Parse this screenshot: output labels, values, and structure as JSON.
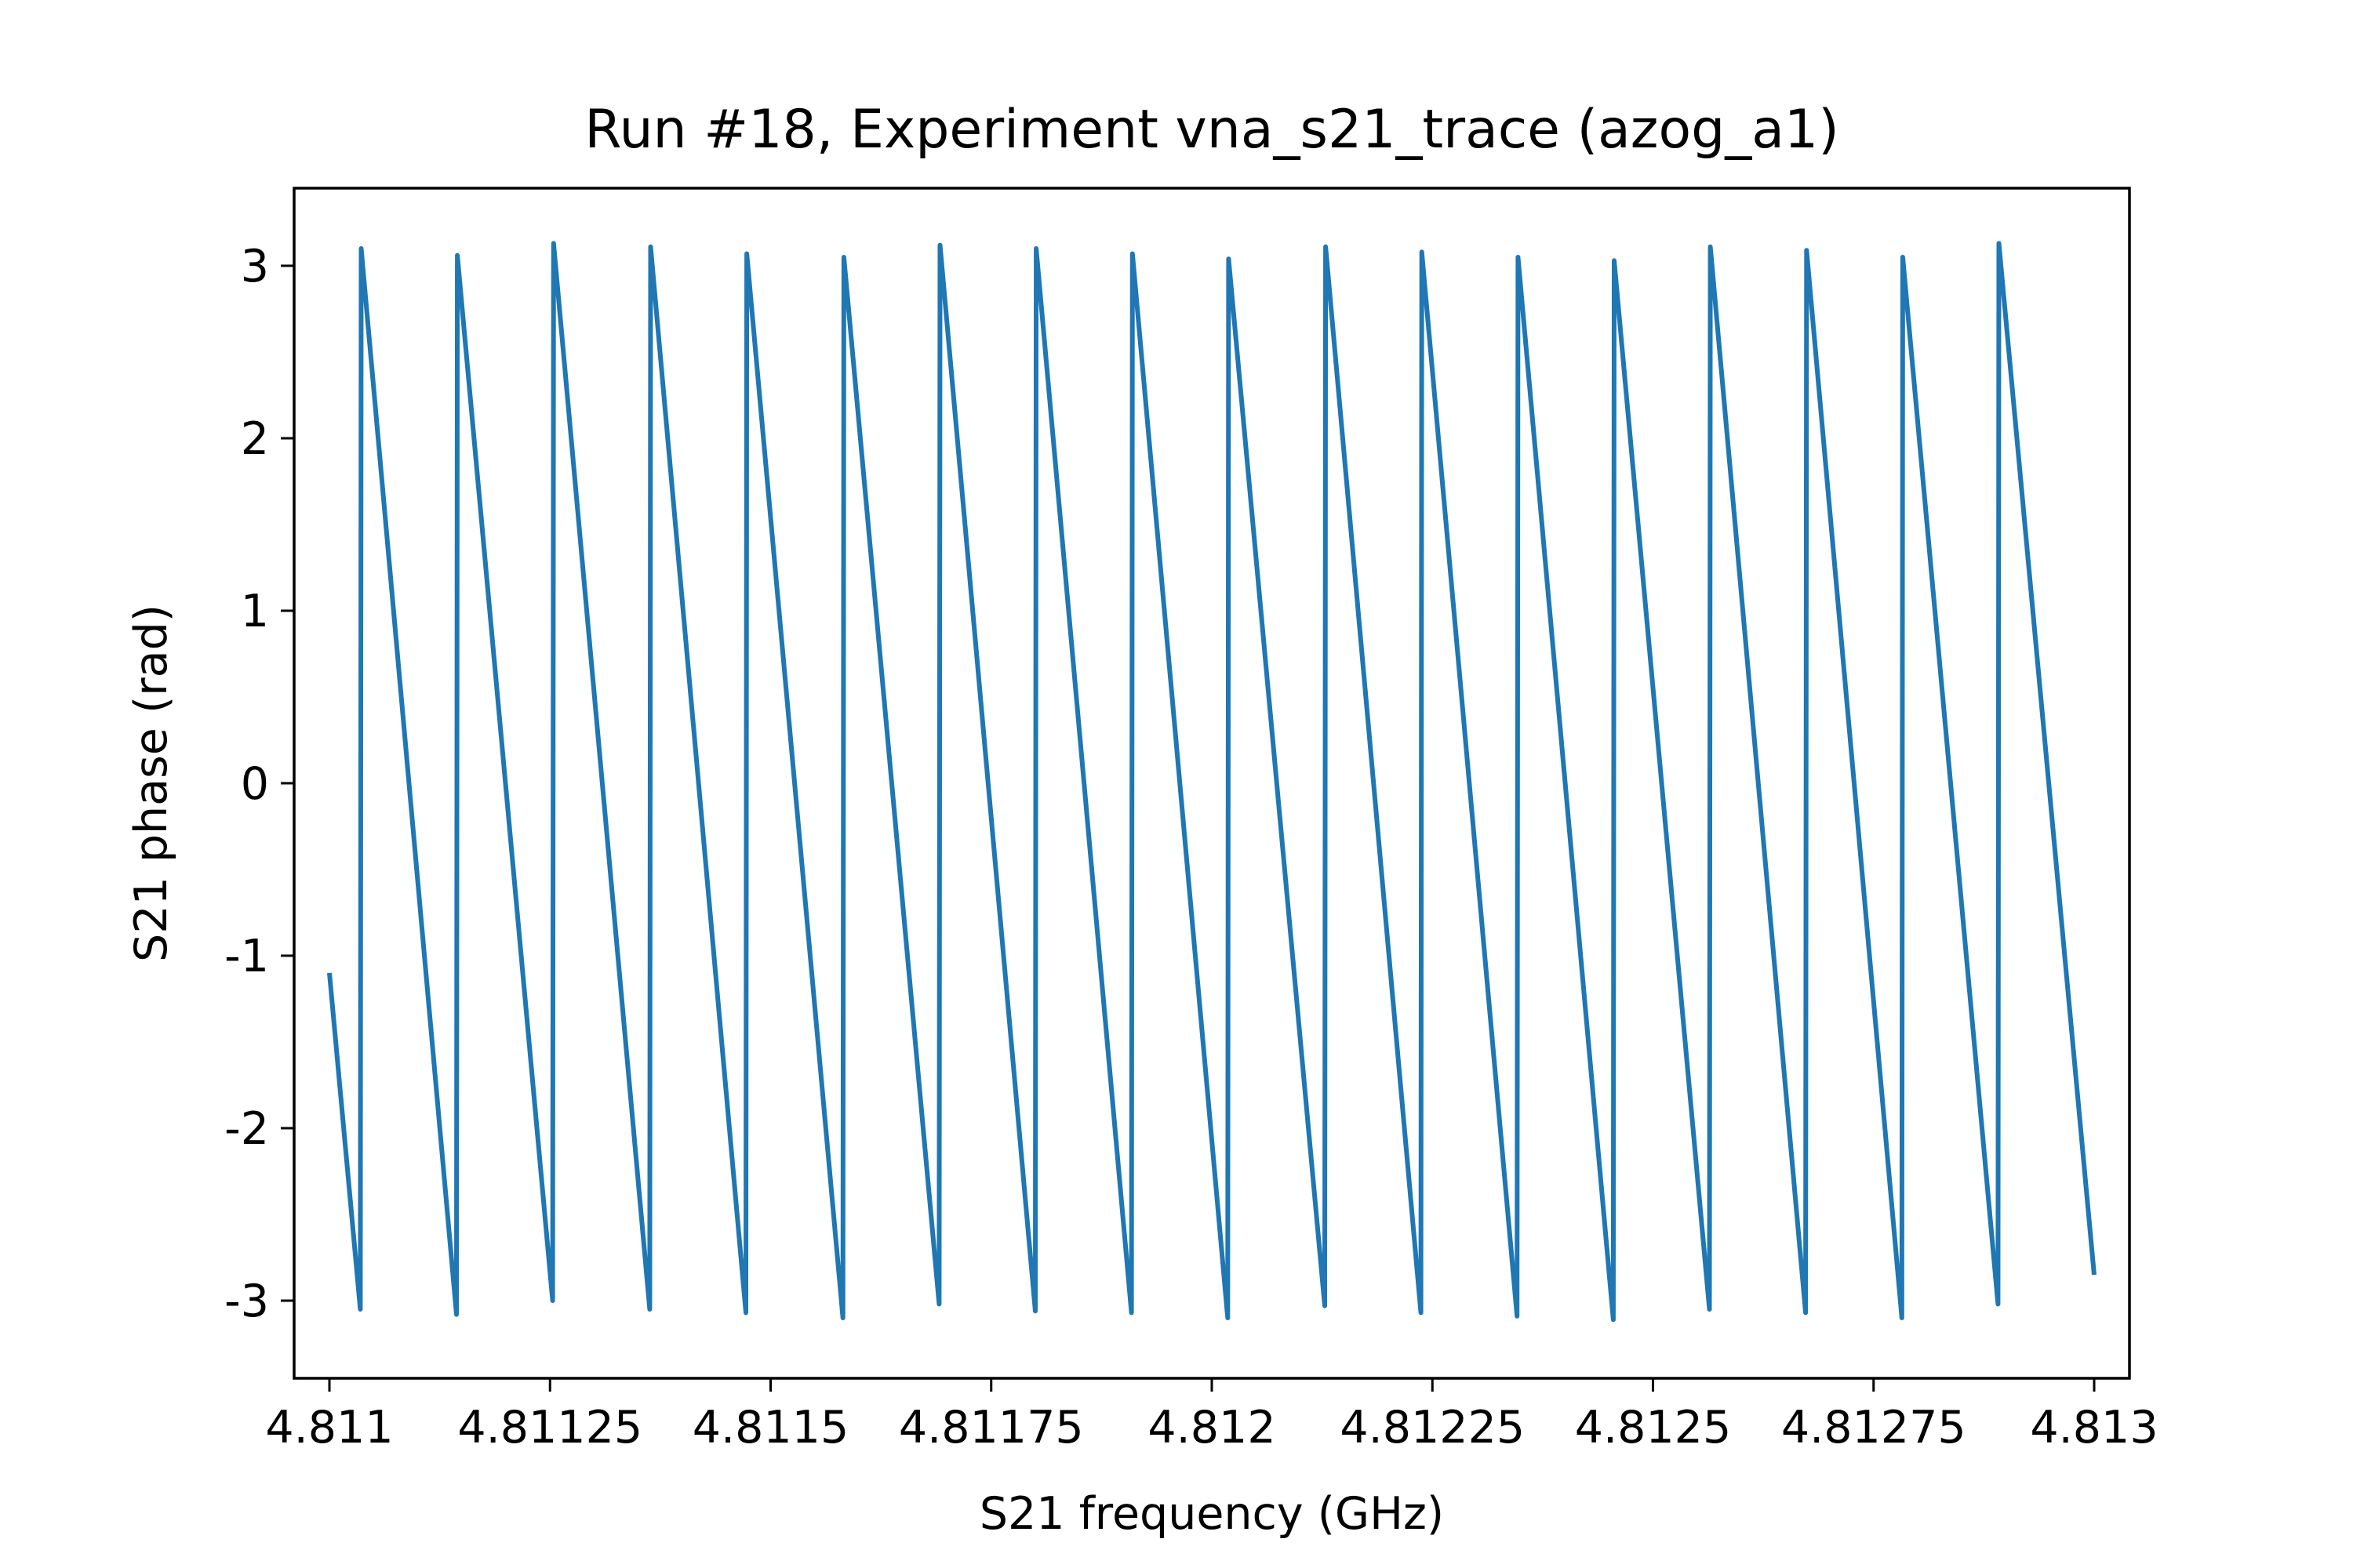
{
  "chart_data": {
    "type": "line",
    "title": "Run #18, Experiment vna_s21_trace (azog_a1)",
    "xlabel": "S21 frequency (GHz)",
    "ylabel": "S21 phase (rad)",
    "xlim": [
      4.81096,
      4.81304
    ],
    "ylim": [
      -3.45,
      3.45
    ],
    "grid": false,
    "xticks": [
      4.811,
      4.81125,
      4.8115,
      4.81175,
      4.812,
      4.81225,
      4.8125,
      4.81275,
      4.813
    ],
    "xtick_labels": [
      "4.811",
      "4.81125",
      "4.8115",
      "4.81175",
      "4.812",
      "4.81225",
      "4.8125",
      "4.81275",
      "4.813"
    ],
    "yticks": [
      3,
      2,
      1,
      0,
      -1,
      -2,
      -3
    ],
    "ytick_labels": [
      "3",
      "2",
      "1",
      "0",
      "-1",
      "-2",
      "-3"
    ],
    "line_color": "#1f77b4",
    "series": [
      {
        "x": [
          4.811,
          4.811035,
          4.811036,
          4.811144,
          4.811145,
          4.811253,
          4.811254,
          4.811363,
          4.811364,
          4.811472,
          4.811473,
          4.811582,
          4.811583,
          4.811691,
          4.811692,
          4.8118,
          4.811801,
          4.811909,
          4.81191,
          4.812018,
          4.812019,
          4.812128,
          4.812129,
          4.812237,
          4.812238,
          4.812346,
          4.812347,
          4.812455,
          4.812456,
          4.812564,
          4.812565,
          4.812673,
          4.812674,
          4.812782,
          4.812783,
          4.812891,
          4.812892,
          4.813
        ],
        "y": [
          -1.1,
          -3.05,
          3.1,
          -3.08,
          3.06,
          -3.0,
          3.13,
          -3.05,
          3.11,
          -3.07,
          3.07,
          -3.1,
          3.05,
          -3.02,
          3.12,
          -3.06,
          3.1,
          -3.07,
          3.07,
          -3.1,
          3.04,
          -3.03,
          3.11,
          -3.07,
          3.08,
          -3.09,
          3.05,
          -3.11,
          3.03,
          -3.05,
          3.11,
          -3.07,
          3.09,
          -3.1,
          3.05,
          -3.02,
          3.13,
          -2.85
        ]
      }
    ]
  }
}
